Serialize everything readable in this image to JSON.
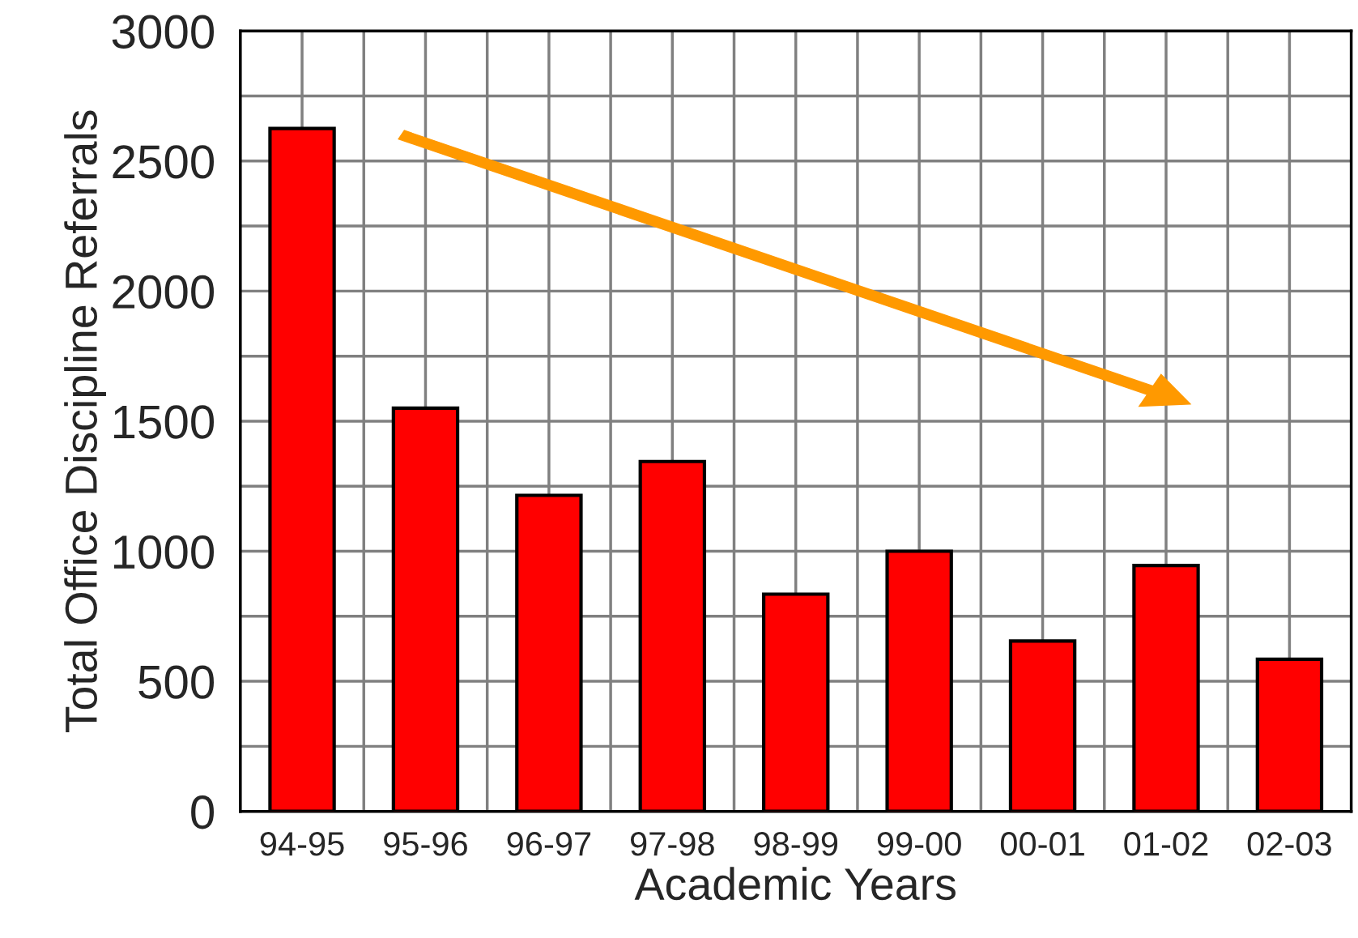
{
  "chart_data": {
    "type": "bar",
    "xlabel": "Academic Years",
    "ylabel": "Total Office Discipline Referrals",
    "categories": [
      "94-95",
      "95-96",
      "96-97",
      "97-98",
      "98-99",
      "99-00",
      "00-01",
      "01-02",
      "02-03"
    ],
    "values": [
      2625,
      1550,
      1215,
      1345,
      835,
      1000,
      655,
      945,
      585
    ],
    "color": "#ff0000",
    "ylim": [
      0,
      3000
    ],
    "yticks": [
      0,
      {
        "value": 250,
        "label": null
      },
      500,
      {
        "value": 750,
        "label": null
      },
      1000,
      {
        "value": 1250,
        "label": null
      },
      1500,
      {
        "value": 1750,
        "label": null
      },
      2000,
      {
        "value": 2250,
        "label": null
      },
      2500,
      {
        "value": 2750,
        "label": null
      },
      3000
    ],
    "grid": true,
    "legend": false
  }
}
